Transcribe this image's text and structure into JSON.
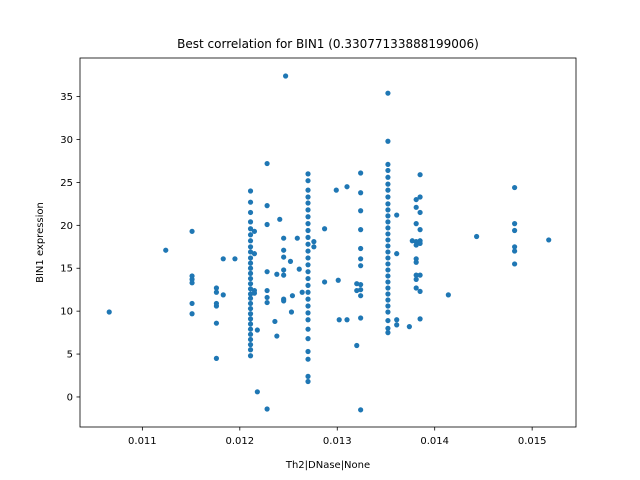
{
  "chart_data": {
    "type": "scatter",
    "title": "Best correlation for BIN1 (0.33077133888199006)",
    "xlabel": "Th2|DNase|None",
    "ylabel": "BIN1 expression",
    "xlim": [
      0.01036,
      0.01545
    ],
    "ylim": [
      -3.5,
      39.5
    ],
    "xticks": [
      0.011,
      0.012,
      0.013,
      0.014,
      0.015
    ],
    "xtick_labels": [
      "0.011",
      "0.012",
      "0.013",
      "0.014",
      "0.015"
    ],
    "yticks": [
      0,
      5,
      10,
      15,
      20,
      25,
      30,
      35
    ],
    "ytick_labels": [
      "0",
      "5",
      "10",
      "15",
      "20",
      "25",
      "30",
      "35"
    ],
    "grid": false,
    "color": "#1f77b4",
    "points": [
      [
        0.01066,
        9.9
      ],
      [
        0.01124,
        17.1
      ],
      [
        0.01151,
        19.3
      ],
      [
        0.01151,
        14.1
      ],
      [
        0.01151,
        13.7
      ],
      [
        0.01151,
        13.3
      ],
      [
        0.01151,
        10.9
      ],
      [
        0.01151,
        9.7
      ],
      [
        0.01176,
        12.7
      ],
      [
        0.01176,
        12.2
      ],
      [
        0.01176,
        10.9
      ],
      [
        0.01176,
        10.6
      ],
      [
        0.01176,
        8.6
      ],
      [
        0.01176,
        4.5
      ],
      [
        0.01183,
        16.1
      ],
      [
        0.01183,
        11.9
      ],
      [
        0.01195,
        16.1
      ],
      [
        0.01211,
        24.0
      ],
      [
        0.01211,
        22.7
      ],
      [
        0.01211,
        21.5
      ],
      [
        0.01211,
        20.4
      ],
      [
        0.01211,
        19.6
      ],
      [
        0.01211,
        18.9
      ],
      [
        0.01211,
        18.2
      ],
      [
        0.01211,
        17.5
      ],
      [
        0.01211,
        16.9
      ],
      [
        0.01211,
        16.2
      ],
      [
        0.01211,
        15.6
      ],
      [
        0.01211,
        15.0
      ],
      [
        0.01211,
        14.4
      ],
      [
        0.01211,
        13.8
      ],
      [
        0.01211,
        13.2
      ],
      [
        0.01211,
        12.6
      ],
      [
        0.01211,
        12.0
      ],
      [
        0.01211,
        11.5
      ],
      [
        0.01211,
        10.9
      ],
      [
        0.01211,
        10.3
      ],
      [
        0.01211,
        9.7
      ],
      [
        0.01211,
        9.1
      ],
      [
        0.01211,
        8.5
      ],
      [
        0.01211,
        7.9
      ],
      [
        0.01211,
        7.3
      ],
      [
        0.01211,
        6.7
      ],
      [
        0.01211,
        6.1
      ],
      [
        0.01211,
        5.5
      ],
      [
        0.01211,
        4.8
      ],
      [
        0.01215,
        19.3
      ],
      [
        0.01215,
        16.7
      ],
      [
        0.01215,
        12.4
      ],
      [
        0.01215,
        12.1
      ],
      [
        0.01218,
        7.8
      ],
      [
        0.01218,
        0.6
      ],
      [
        0.01228,
        27.2
      ],
      [
        0.01228,
        22.3
      ],
      [
        0.01228,
        20.1
      ],
      [
        0.01228,
        14.6
      ],
      [
        0.01228,
        12.4
      ],
      [
        0.01228,
        11.6
      ],
      [
        0.01228,
        11.0
      ],
      [
        0.01228,
        -1.4
      ],
      [
        0.01236,
        8.8
      ],
      [
        0.01238,
        14.3
      ],
      [
        0.01238,
        7.1
      ],
      [
        0.01241,
        20.7
      ],
      [
        0.01245,
        18.5
      ],
      [
        0.01245,
        17.1
      ],
      [
        0.01245,
        16.3
      ],
      [
        0.01245,
        14.8
      ],
      [
        0.01245,
        14.2
      ],
      [
        0.01245,
        11.4
      ],
      [
        0.01245,
        11.2
      ],
      [
        0.01247,
        37.4
      ],
      [
        0.01252,
        15.8
      ],
      [
        0.01253,
        9.9
      ],
      [
        0.01254,
        11.8
      ],
      [
        0.01259,
        18.5
      ],
      [
        0.01261,
        14.9
      ],
      [
        0.01264,
        12.2
      ],
      [
        0.0127,
        26.0
      ],
      [
        0.0127,
        25.2
      ],
      [
        0.0127,
        24.1
      ],
      [
        0.0127,
        23.3
      ],
      [
        0.0127,
        22.6
      ],
      [
        0.0127,
        21.8
      ],
      [
        0.0127,
        21.0
      ],
      [
        0.0127,
        20.2
      ],
      [
        0.0127,
        19.4
      ],
      [
        0.0127,
        18.6
      ],
      [
        0.0127,
        17.8
      ],
      [
        0.0127,
        17.0
      ],
      [
        0.0127,
        16.2
      ],
      [
        0.0127,
        15.4
      ],
      [
        0.0127,
        14.6
      ],
      [
        0.0127,
        13.8
      ],
      [
        0.0127,
        13.0
      ],
      [
        0.0127,
        12.2
      ],
      [
        0.0127,
        11.4
      ],
      [
        0.0127,
        10.6
      ],
      [
        0.0127,
        9.8
      ],
      [
        0.0127,
        9.0
      ],
      [
        0.0127,
        7.9
      ],
      [
        0.0127,
        6.8
      ],
      [
        0.0127,
        5.3
      ],
      [
        0.0127,
        4.4
      ],
      [
        0.0127,
        2.4
      ],
      [
        0.0127,
        1.8
      ],
      [
        0.01276,
        18.1
      ],
      [
        0.01276,
        17.5
      ],
      [
        0.01287,
        19.6
      ],
      [
        0.01287,
        13.4
      ],
      [
        0.01299,
        24.1
      ],
      [
        0.01301,
        13.6
      ],
      [
        0.01302,
        9.0
      ],
      [
        0.0131,
        24.5
      ],
      [
        0.0131,
        9.0
      ],
      [
        0.0132,
        13.2
      ],
      [
        0.0132,
        12.4
      ],
      [
        0.0132,
        6.0
      ],
      [
        0.01324,
        26.1
      ],
      [
        0.01324,
        23.8
      ],
      [
        0.01324,
        21.7
      ],
      [
        0.01324,
        19.5
      ],
      [
        0.01324,
        17.3
      ],
      [
        0.01324,
        16.1
      ],
      [
        0.01324,
        15.3
      ],
      [
        0.01324,
        13.1
      ],
      [
        0.01324,
        12.5
      ],
      [
        0.01324,
        11.8
      ],
      [
        0.01324,
        9.2
      ],
      [
        0.01324,
        -1.5
      ],
      [
        0.01352,
        35.4
      ],
      [
        0.01352,
        29.8
      ],
      [
        0.01352,
        27.1
      ],
      [
        0.01352,
        26.4
      ],
      [
        0.01352,
        25.6
      ],
      [
        0.01352,
        24.8
      ],
      [
        0.01352,
        24.1
      ],
      [
        0.01352,
        23.3
      ],
      [
        0.01352,
        22.5
      ],
      [
        0.01352,
        21.8
      ],
      [
        0.01352,
        21.1
      ],
      [
        0.01352,
        20.4
      ],
      [
        0.01352,
        19.7
      ],
      [
        0.01352,
        19.0
      ],
      [
        0.01352,
        18.3
      ],
      [
        0.01352,
        17.6
      ],
      [
        0.01352,
        16.9
      ],
      [
        0.01352,
        16.2
      ],
      [
        0.01352,
        15.5
      ],
      [
        0.01352,
        14.8
      ],
      [
        0.01352,
        14.1
      ],
      [
        0.01352,
        13.4
      ],
      [
        0.01352,
        12.7
      ],
      [
        0.01352,
        12.0
      ],
      [
        0.01352,
        11.3
      ],
      [
        0.01352,
        10.6
      ],
      [
        0.01352,
        9.9
      ],
      [
        0.01352,
        8.9
      ],
      [
        0.01352,
        8.0
      ],
      [
        0.01352,
        7.5
      ],
      [
        0.01361,
        21.2
      ],
      [
        0.01361,
        16.7
      ],
      [
        0.01361,
        9.0
      ],
      [
        0.01361,
        8.4
      ],
      [
        0.01374,
        8.2
      ],
      [
        0.01377,
        18.2
      ],
      [
        0.01381,
        23.0
      ],
      [
        0.01381,
        22.1
      ],
      [
        0.01381,
        20.2
      ],
      [
        0.01381,
        18.1
      ],
      [
        0.01381,
        17.7
      ],
      [
        0.01381,
        16.1
      ],
      [
        0.01381,
        15.7
      ],
      [
        0.01381,
        14.2
      ],
      [
        0.01381,
        13.7
      ],
      [
        0.01381,
        12.7
      ],
      [
        0.01385,
        25.9
      ],
      [
        0.01385,
        23.3
      ],
      [
        0.01385,
        21.5
      ],
      [
        0.01385,
        19.5
      ],
      [
        0.01385,
        18.2
      ],
      [
        0.01385,
        17.9
      ],
      [
        0.01385,
        14.2
      ],
      [
        0.01385,
        12.3
      ],
      [
        0.01385,
        9.1
      ],
      [
        0.01414,
        11.9
      ],
      [
        0.01443,
        18.7
      ],
      [
        0.01482,
        24.4
      ],
      [
        0.01482,
        20.2
      ],
      [
        0.01482,
        19.4
      ],
      [
        0.01482,
        17.5
      ],
      [
        0.01482,
        17.0
      ],
      [
        0.01482,
        15.5
      ],
      [
        0.01517,
        18.3
      ]
    ]
  }
}
